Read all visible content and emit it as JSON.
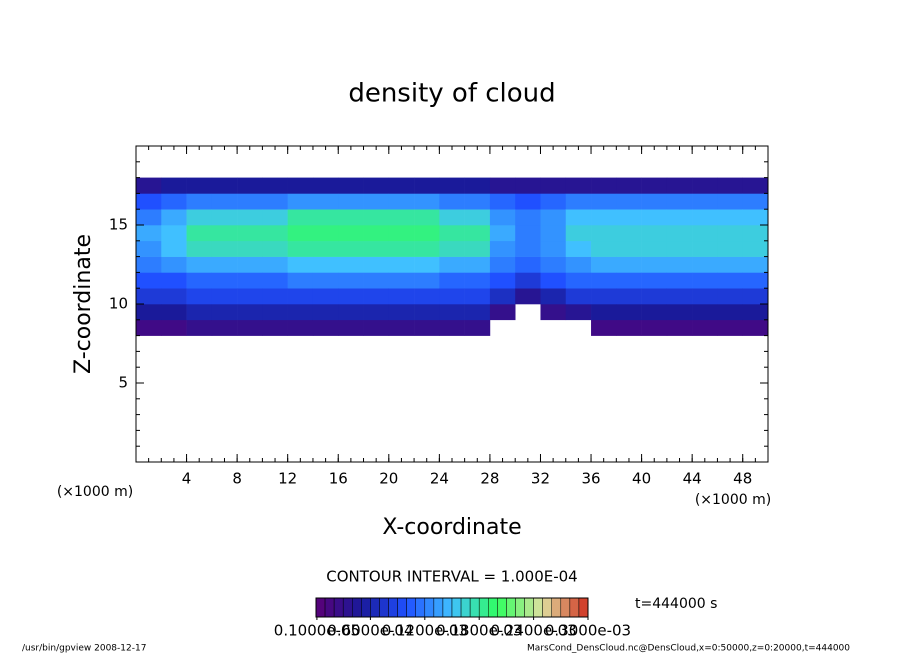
{
  "chart_data": {
    "type": "heatmap",
    "title": "density of cloud",
    "xlabel": "X-coordinate",
    "ylabel": "Z-coordinate",
    "xunit": "(×1000 m)",
    "yunit": "(×1000 m)",
    "xlim": [
      0,
      50
    ],
    "ylim": [
      0,
      20
    ],
    "xticks": [
      4,
      8,
      12,
      16,
      20,
      24,
      28,
      32,
      36,
      40,
      44,
      48
    ],
    "yticks": [
      5,
      10,
      15
    ],
    "x_bins": [
      0,
      2,
      4,
      6,
      8,
      10,
      12,
      14,
      16,
      18,
      20,
      22,
      24,
      26,
      28,
      30,
      32,
      34,
      36,
      38,
      40,
      42,
      44,
      46,
      48,
      50
    ],
    "z_bins": [
      8,
      9,
      10,
      11,
      12,
      13,
      14,
      15,
      16,
      17,
      18
    ],
    "values": [
      [
        2e-05,
        5e-05,
        8e-05,
        0.0001,
        0.00012,
        0.00013,
        0.00014,
        0.00012,
        0.0001,
        4e-05
      ],
      [
        2e-05,
        5e-05,
        8e-05,
        0.0001,
        0.00013,
        0.00015,
        0.00015,
        0.00014,
        0.00011,
        5e-05
      ],
      [
        3e-05,
        6e-05,
        9e-05,
        0.00011,
        0.00014,
        0.00017,
        0.00018,
        0.00016,
        0.00012,
        5e-05
      ],
      [
        3e-05,
        6e-05,
        9e-05,
        0.00011,
        0.00014,
        0.00017,
        0.00018,
        0.00016,
        0.00012,
        5e-05
      ],
      [
        3e-05,
        6e-05,
        9e-05,
        0.00011,
        0.00014,
        0.00017,
        0.00018,
        0.00016,
        0.00012,
        5e-05
      ],
      [
        3e-05,
        6e-05,
        9e-05,
        0.00011,
        0.00014,
        0.00017,
        0.00018,
        0.00016,
        0.00012,
        5e-05
      ],
      [
        3e-05,
        6e-05,
        9e-05,
        0.00012,
        0.00015,
        0.00018,
        0.00019,
        0.00018,
        0.00013,
        5e-05
      ],
      [
        3e-05,
        6e-05,
        9e-05,
        0.00012,
        0.00015,
        0.00018,
        0.00019,
        0.00018,
        0.00013,
        5e-05
      ],
      [
        3e-05,
        6e-05,
        9e-05,
        0.00012,
        0.00015,
        0.00018,
        0.00019,
        0.00018,
        0.00013,
        5e-05
      ],
      [
        3e-05,
        6e-05,
        9e-05,
        0.00012,
        0.00015,
        0.00018,
        0.00019,
        0.00018,
        0.00013,
        5e-05
      ],
      [
        3e-05,
        6e-05,
        9e-05,
        0.00012,
        0.00015,
        0.00018,
        0.00019,
        0.00018,
        0.00013,
        5e-05
      ],
      [
        3e-05,
        6e-05,
        9e-05,
        0.00012,
        0.00015,
        0.00018,
        0.00019,
        0.00018,
        0.00013,
        5e-05
      ],
      [
        3e-05,
        6e-05,
        9e-05,
        0.00011,
        0.00014,
        0.00017,
        0.00018,
        0.00016,
        0.00012,
        5e-05
      ],
      [
        3e-05,
        6e-05,
        9e-05,
        0.00011,
        0.00014,
        0.00017,
        0.00018,
        0.00016,
        0.00012,
        5e-05
      ],
      [
        null,
        3e-05,
        7e-05,
        0.0001,
        0.00012,
        0.00013,
        0.00014,
        0.00013,
        0.00011,
        4e-05
      ],
      [
        null,
        null,
        4e-05,
        8e-05,
        0.00011,
        0.00012,
        0.00012,
        0.00012,
        0.0001,
        4e-05
      ],
      [
        null,
        3e-05,
        6e-05,
        0.0001,
        0.00012,
        0.00013,
        0.00013,
        0.00013,
        0.00011,
        4e-05
      ],
      [
        null,
        4e-05,
        8e-05,
        0.00011,
        0.00013,
        0.00015,
        0.00016,
        0.00015,
        0.00012,
        4e-05
      ],
      [
        2e-05,
        5e-05,
        8e-05,
        0.00011,
        0.00014,
        0.00016,
        0.00016,
        0.00015,
        0.00012,
        4e-05
      ],
      [
        2e-05,
        5e-05,
        8e-05,
        0.00011,
        0.00014,
        0.00016,
        0.00016,
        0.00015,
        0.00012,
        4e-05
      ],
      [
        2e-05,
        5e-05,
        8e-05,
        0.00011,
        0.00014,
        0.00016,
        0.00016,
        0.00015,
        0.00012,
        4e-05
      ],
      [
        2e-05,
        5e-05,
        8e-05,
        0.00011,
        0.00014,
        0.00016,
        0.00016,
        0.00015,
        0.00012,
        4e-05
      ],
      [
        2e-05,
        5e-05,
        8e-05,
        0.00011,
        0.00014,
        0.00016,
        0.00016,
        0.00015,
        0.00012,
        4e-05
      ],
      [
        2e-05,
        5e-05,
        8e-05,
        0.00011,
        0.00014,
        0.00016,
        0.00016,
        0.00015,
        0.00012,
        4e-05
      ],
      [
        2e-05,
        5e-05,
        8e-05,
        0.00011,
        0.00014,
        0.00016,
        0.00016,
        0.00015,
        0.00012,
        4e-05
      ]
    ],
    "colorscale": [
      "#5a0078",
      "#1a1a9a",
      "#2050ff",
      "#40c0ff",
      "#30ff60",
      "#e0e0a0",
      "#d03020"
    ],
    "clim": [
      0,
      0.0003
    ],
    "cbar_ticks": [
      {
        "value": 1e-06,
        "label": "0.1000e-05"
      },
      {
        "value": 6e-05,
        "label": "0.6000e-04"
      },
      {
        "value": 0.00012,
        "label": "0.1200e-03"
      },
      {
        "value": 0.00018,
        "label": "0.1800e-03"
      },
      {
        "value": 0.00024,
        "label": "0.2400e-03"
      },
      {
        "value": 0.0003,
        "label": "0.3000e-03"
      }
    ],
    "contour_note": "CONTOUR INTERVAL = 1.000E-04",
    "time_note": "t=444000 s",
    "footer_left": "/usr/bin/gpview  2008-12-17",
    "footer_right": "MarsCond_DensCloud.nc@DensCloud,x=0:50000,z=0:20000,t=444000"
  }
}
